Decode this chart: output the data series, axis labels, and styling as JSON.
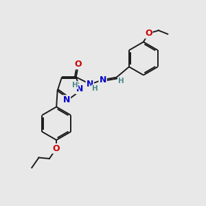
{
  "bg_color": "#e8e8e8",
  "bond_color": "#1a1a1a",
  "bond_width": 1.4,
  "atom_colors": {
    "N": "#0000cc",
    "O": "#cc0000",
    "H": "#4a8a8a"
  },
  "font_size": 9.0,
  "font_size_h": 7.5
}
